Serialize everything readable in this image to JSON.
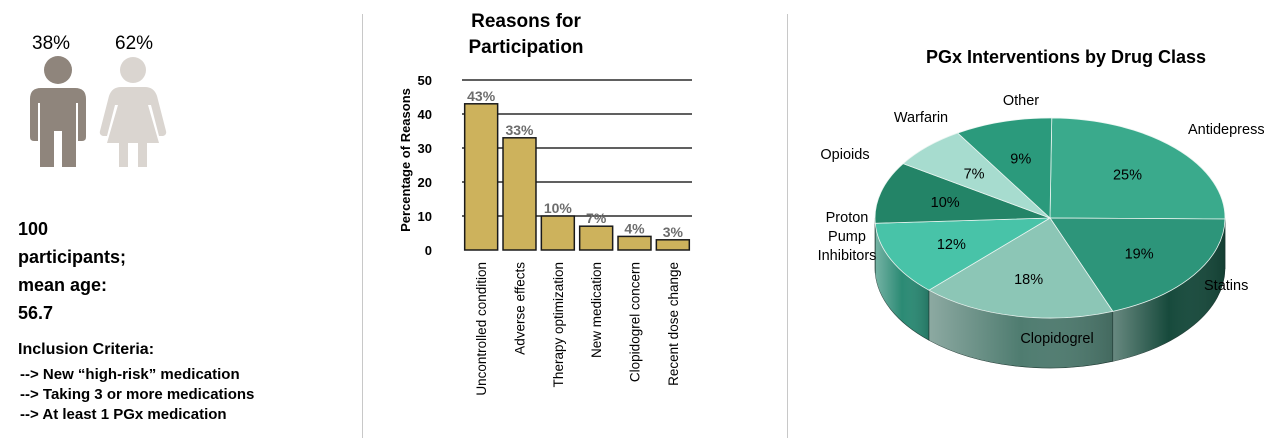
{
  "demographics": {
    "male_pct": "38%",
    "female_pct": "62%",
    "colors": {
      "male": "#8f857c",
      "female": "#dad5d0"
    },
    "summary_lines": [
      "100",
      "participants;",
      "mean age:",
      "56.7"
    ],
    "criteria_title": "Inclusion Criteria:",
    "criteria": [
      "--> New “high-risk” medication",
      "--> Taking 3 or more medications",
      "--> At least 1 PGx medication"
    ]
  },
  "chart_data": [
    {
      "type": "bar",
      "title_lines": [
        "Reasons for",
        "Participation"
      ],
      "ylabel": "Percentage of Reasons",
      "xlabel": "",
      "ylim": [
        0,
        50
      ],
      "yticks": [
        0,
        10,
        20,
        30,
        40,
        50
      ],
      "categories": [
        "Uncontrolled condition",
        "Adverse effects",
        "Therapy optimization",
        "New medication",
        "Clopidogrel concern",
        "Recent dose change"
      ],
      "values": [
        43,
        33,
        10,
        7,
        4,
        3
      ],
      "data_labels": [
        "43%",
        "33%",
        "10%",
        "7%",
        "4%",
        "3%"
      ],
      "grid": true,
      "colors": {
        "bar": "#cdb25c",
        "bar_edge": "#1a1a1a",
        "label": "#6d6d6d"
      }
    },
    {
      "type": "pie",
      "title": "PGx Interventions by Drug Class",
      "slices": [
        {
          "label": "Antidepressants",
          "value": 25,
          "pct_label": "25%",
          "color": "#3aaa8c",
          "side": "#206a58"
        },
        {
          "label": "Statins",
          "value": 19,
          "pct_label": "19%",
          "color": "#2d957a",
          "side": "#174a3c"
        },
        {
          "label": "Clopidogrel",
          "value": 18,
          "pct_label": "18%",
          "color": "#8cc6b6",
          "side": "#4f7c70"
        },
        {
          "label": "Proton Pump Inhibitors",
          "value": 12,
          "pct_label": "12%",
          "color": "#48c3a8",
          "side": "#2b8a74"
        },
        {
          "label": "Opioids",
          "value": 10,
          "pct_label": "10%",
          "color": "#238467",
          "side": "#14503f"
        },
        {
          "label": "Warfarin",
          "value": 7,
          "pct_label": "7%",
          "color": "#a7dccf",
          "side": "#6aa596"
        },
        {
          "label": "Other",
          "value": 9,
          "pct_label": "9%",
          "color": "#2b9a7c",
          "side": "#176150"
        }
      ]
    }
  ]
}
